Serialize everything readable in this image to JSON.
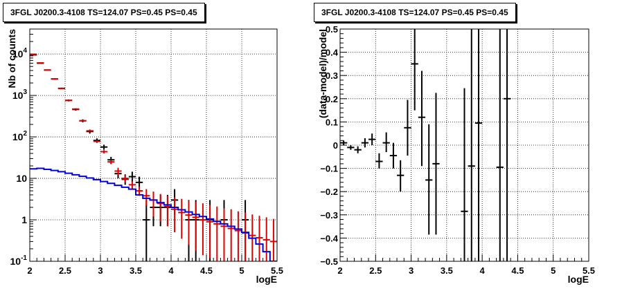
{
  "chart_data": [
    {
      "type": "line",
      "title": "3FGL J0200.3-4108 TS=124.07 PS=0.45 PS=0.45",
      "xlabel": "logE",
      "ylabel": "Nb of counts",
      "xlim": [
        2,
        5.5
      ],
      "ylim": [
        0.1,
        40000
      ],
      "yscale": "log",
      "grid": true,
      "x_ticks": [
        "2",
        "2.5",
        "3",
        "3.5",
        "4",
        "4.5",
        "5",
        "5.5"
      ],
      "y_ticks": [
        {
          "value": 0.1,
          "base": "10",
          "exp": "-1"
        },
        {
          "value": 1,
          "base": "1",
          "exp": ""
        },
        {
          "value": 10,
          "base": "10",
          "exp": ""
        },
        {
          "value": 100,
          "base": "10",
          "exp": "2"
        },
        {
          "value": 1000,
          "base": "10",
          "exp": "3"
        },
        {
          "value": 10000,
          "base": "10",
          "exp": "4"
        }
      ],
      "series": [
        {
          "color": "#000000",
          "style": "errorbar",
          "points": [
            {
              "x": 2.05,
              "y": 9500,
              "ylo": 9300,
              "yhi": 9700
            },
            {
              "x": 2.15,
              "y": 6000,
              "ylo": 5850,
              "yhi": 6150
            },
            {
              "x": 2.25,
              "y": 4100,
              "ylo": 3980,
              "yhi": 4220
            },
            {
              "x": 2.35,
              "y": 2500,
              "ylo": 2420,
              "yhi": 2580
            },
            {
              "x": 2.45,
              "y": 1480,
              "ylo": 1420,
              "yhi": 1540
            },
            {
              "x": 2.55,
              "y": 760,
              "ylo": 720,
              "yhi": 800
            },
            {
              "x": 2.65,
              "y": 460,
              "ylo": 430,
              "yhi": 490
            },
            {
              "x": 2.75,
              "y": 245,
              "ylo": 225,
              "yhi": 265
            },
            {
              "x": 2.85,
              "y": 135,
              "ylo": 120,
              "yhi": 150
            },
            {
              "x": 2.95,
              "y": 82,
              "ylo": 72,
              "yhi": 92
            },
            {
              "x": 3.05,
              "y": 57,
              "ylo": 49,
              "yhi": 65
            },
            {
              "x": 3.15,
              "y": 28,
              "ylo": 23,
              "yhi": 33
            },
            {
              "x": 3.25,
              "y": 13,
              "ylo": 10,
              "yhi": 16.5
            },
            {
              "x": 3.35,
              "y": 9.5,
              "ylo": 7,
              "yhi": 12.5
            },
            {
              "x": 3.45,
              "y": 11,
              "ylo": 8,
              "yhi": 14.5
            },
            {
              "x": 3.55,
              "y": 8,
              "ylo": 5.5,
              "yhi": 11
            },
            {
              "x": 3.65,
              "y": 1,
              "ylo": 0.1,
              "yhi": 3
            },
            {
              "x": 3.75,
              "y": 2,
              "ylo": 0.7,
              "yhi": 4
            },
            {
              "x": 3.85,
              "y": 2,
              "ylo": 0.7,
              "yhi": 4
            },
            {
              "x": 3.95,
              "y": 2,
              "ylo": 0.7,
              "yhi": 4
            },
            {
              "x": 4.05,
              "y": 3,
              "ylo": 1.3,
              "yhi": 5.5
            },
            {
              "x": 4.25,
              "y": 1,
              "ylo": 0.1,
              "yhi": 3
            },
            {
              "x": 4.35,
              "y": 1,
              "ylo": 0.1,
              "yhi": 3
            },
            {
              "x": 4.55,
              "y": 1,
              "ylo": 0.1,
              "yhi": 3
            },
            {
              "x": 4.75,
              "y": 1,
              "ylo": 0.1,
              "yhi": 3
            },
            {
              "x": 5.05,
              "y": 1,
              "ylo": 0.1,
              "yhi": 3
            }
          ]
        },
        {
          "color": "#dd0000",
          "style": "errorbar",
          "points": [
            {
              "x": 2.05,
              "y": 9600,
              "ylo": 9400,
              "yhi": 9800
            },
            {
              "x": 2.15,
              "y": 6100,
              "ylo": 5950,
              "yhi": 6250
            },
            {
              "x": 2.25,
              "y": 4100,
              "ylo": 4000,
              "yhi": 4200
            },
            {
              "x": 2.35,
              "y": 2500,
              "ylo": 2440,
              "yhi": 2560
            },
            {
              "x": 2.45,
              "y": 1480,
              "ylo": 1440,
              "yhi": 1520
            },
            {
              "x": 2.55,
              "y": 760,
              "ylo": 740,
              "yhi": 780
            },
            {
              "x": 2.65,
              "y": 470,
              "ylo": 455,
              "yhi": 485
            },
            {
              "x": 2.75,
              "y": 245,
              "ylo": 235,
              "yhi": 255
            },
            {
              "x": 2.85,
              "y": 140,
              "ylo": 133,
              "yhi": 147
            },
            {
              "x": 2.95,
              "y": 78,
              "ylo": 73,
              "yhi": 83
            },
            {
              "x": 3.05,
              "y": 44,
              "ylo": 40,
              "yhi": 48
            },
            {
              "x": 3.15,
              "y": 25,
              "ylo": 22,
              "yhi": 28
            },
            {
              "x": 3.25,
              "y": 15,
              "ylo": 12,
              "yhi": 18
            },
            {
              "x": 3.35,
              "y": 10,
              "ylo": 8,
              "yhi": 12
            },
            {
              "x": 3.45,
              "y": 7,
              "ylo": 5.5,
              "yhi": 8.5
            },
            {
              "x": 3.55,
              "y": 5,
              "ylo": 3.8,
              "yhi": 6.3
            },
            {
              "x": 3.65,
              "y": 3.8,
              "ylo": 2.2,
              "yhi": 5.5
            },
            {
              "x": 3.75,
              "y": 3,
              "ylo": 1.2,
              "yhi": 4.8
            },
            {
              "x": 3.85,
              "y": 2.5,
              "ylo": 0.9,
              "yhi": 4.2
            },
            {
              "x": 3.95,
              "y": 2.1,
              "ylo": 0.7,
              "yhi": 3.8
            },
            {
              "x": 4.05,
              "y": 1.8,
              "ylo": 0.5,
              "yhi": 3.5
            },
            {
              "x": 4.15,
              "y": 1.5,
              "ylo": 0.35,
              "yhi": 3.2
            },
            {
              "x": 4.25,
              "y": 1.3,
              "ylo": 0.25,
              "yhi": 2.9
            },
            {
              "x": 4.35,
              "y": 1.15,
              "ylo": 0.18,
              "yhi": 2.7
            },
            {
              "x": 4.45,
              "y": 1.0,
              "ylo": 0.14,
              "yhi": 2.5
            },
            {
              "x": 4.55,
              "y": 0.9,
              "ylo": 0.12,
              "yhi": 2.3
            },
            {
              "x": 4.65,
              "y": 0.8,
              "ylo": 0.1,
              "yhi": 2.1
            },
            {
              "x": 4.75,
              "y": 0.7,
              "ylo": 0.1,
              "yhi": 1.9
            },
            {
              "x": 4.85,
              "y": 0.62,
              "ylo": 0.1,
              "yhi": 1.8
            },
            {
              "x": 4.95,
              "y": 0.55,
              "ylo": 0.1,
              "yhi": 1.6
            },
            {
              "x": 5.05,
              "y": 0.48,
              "ylo": 0.1,
              "yhi": 1.5
            },
            {
              "x": 5.15,
              "y": 0.42,
              "ylo": 0.1,
              "yhi": 1.35
            },
            {
              "x": 5.25,
              "y": 0.37,
              "ylo": 0.1,
              "yhi": 1.25
            },
            {
              "x": 5.35,
              "y": 0.33,
              "ylo": 0.1,
              "yhi": 1.15
            },
            {
              "x": 5.45,
              "y": 0.3,
              "ylo": 0.1,
              "yhi": 1.05
            }
          ]
        },
        {
          "color": "#0000dd",
          "style": "step",
          "bin_width": 0.1,
          "x": [
            2.05,
            2.15,
            2.25,
            2.35,
            2.45,
            2.55,
            2.65,
            2.75,
            2.85,
            2.95,
            3.05,
            3.15,
            3.25,
            3.35,
            3.45,
            3.55,
            3.65,
            3.75,
            3.85,
            3.95,
            4.05,
            4.15,
            4.25,
            4.35,
            4.45,
            4.55,
            4.65,
            4.75,
            4.85,
            4.95,
            5.05,
            5.15,
            5.25,
            5.35,
            5.45
          ],
          "y": [
            17,
            17.5,
            16.5,
            15.5,
            14.5,
            13.3,
            12.2,
            11.2,
            10.2,
            9.3,
            8.4,
            7.6,
            6.8,
            6.1,
            5.5,
            4.0,
            3.3,
            3.0,
            2.6,
            2.3,
            2.0,
            1.75,
            1.55,
            1.35,
            1.2,
            1.05,
            0.92,
            0.8,
            0.7,
            0.6,
            0.5,
            0.36,
            0.26,
            0.17,
            0.1
          ]
        }
      ]
    },
    {
      "type": "scatter",
      "title": "3FGL J0200.3-4108 TS=124.07 PS=0.45 PS=0.45",
      "xlabel": "logE",
      "ylabel": "(data-model)/model",
      "xlim": [
        2,
        5.5
      ],
      "ylim": [
        -0.5,
        0.5
      ],
      "grid": true,
      "x_ticks": [
        "2",
        "2.5",
        "3",
        "3.5",
        "4",
        "4.5",
        "5",
        "5.5"
      ],
      "y_ticks": [
        "−0.5",
        "−0.4",
        "−0.3",
        "−0.2",
        "−0.1",
        "0",
        "0.1",
        "0.2",
        "0.3",
        "0.4",
        "0.5"
      ],
      "y_tick_values": [
        -0.5,
        -0.4,
        -0.3,
        -0.2,
        -0.1,
        0,
        0.1,
        0.2,
        0.3,
        0.4,
        0.5
      ],
      "series": [
        {
          "color": "#000000",
          "style": "errorbar",
          "points": [
            {
              "x": 2.05,
              "y": 0.01,
              "ylo": 0.0,
              "yhi": 0.02
            },
            {
              "x": 2.15,
              "y": -0.01,
              "ylo": -0.02,
              "yhi": 0.0
            },
            {
              "x": 2.25,
              "y": -0.02,
              "ylo": -0.035,
              "yhi": -0.005
            },
            {
              "x": 2.35,
              "y": 0.01,
              "ylo": -0.01,
              "yhi": 0.03
            },
            {
              "x": 2.45,
              "y": 0.025,
              "ylo": 0.0,
              "yhi": 0.05
            },
            {
              "x": 2.55,
              "y": -0.07,
              "ylo": -0.1,
              "yhi": -0.035
            },
            {
              "x": 2.65,
              "y": 0.01,
              "ylo": -0.03,
              "yhi": 0.055
            },
            {
              "x": 2.75,
              "y": -0.045,
              "ylo": -0.1,
              "yhi": 0.01
            },
            {
              "x": 2.85,
              "y": -0.13,
              "ylo": -0.2,
              "yhi": -0.065
            },
            {
              "x": 2.95,
              "y": 0.075,
              "ylo": -0.045,
              "yhi": 0.195
            },
            {
              "x": 3.05,
              "y": 0.35,
              "ylo": 0.15,
              "yhi": 0.5
            },
            {
              "x": 3.15,
              "y": 0.12,
              "ylo": -0.09,
              "yhi": 0.32
            },
            {
              "x": 3.25,
              "y": -0.15,
              "ylo": -0.385,
              "yhi": 0.09
            },
            {
              "x": 3.35,
              "y": -0.08,
              "ylo": -0.385,
              "yhi": 0.225
            },
            {
              "x": 3.75,
              "y": -0.285,
              "ylo": -0.5,
              "yhi": 0.245
            },
            {
              "x": 3.85,
              "y": -0.09,
              "ylo": -0.5,
              "yhi": 0.5
            },
            {
              "x": 3.95,
              "y": 0.095,
              "ylo": -0.5,
              "yhi": 0.5
            },
            {
              "x": 4.25,
              "y": -0.095,
              "ylo": -0.5,
              "yhi": 0.5
            },
            {
              "x": 4.35,
              "y": 0.2,
              "ylo": -0.5,
              "yhi": 0.5
            }
          ]
        }
      ]
    }
  ]
}
